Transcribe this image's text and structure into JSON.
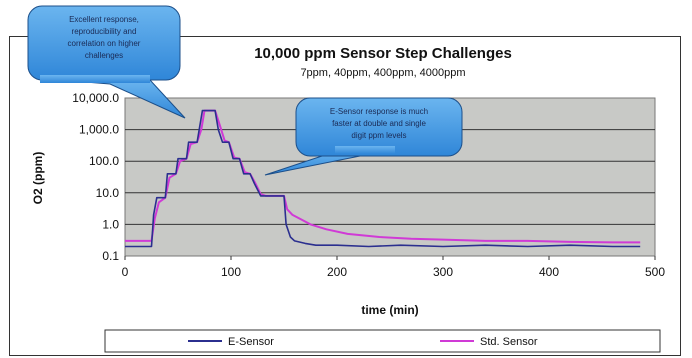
{
  "chart_data": {
    "type": "line",
    "title": "10,000 ppm Sensor Step Challenges",
    "subtitle": "7ppm, 40ppm, 400ppm, 4000ppm",
    "xlabel": "time (min)",
    "ylabel": "O2 (ppm)",
    "xlim": [
      0,
      500
    ],
    "ylim": [
      0.1,
      10000
    ],
    "yscale": "log",
    "grid": "horizontal",
    "legend_position": "bottom",
    "x_ticks": [
      "0",
      "100",
      "200",
      "300",
      "400",
      "500"
    ],
    "y_ticks": [
      "0.1",
      "1.0",
      "10.0",
      "100.0",
      "1,000.0",
      "10,000.0"
    ],
    "series": [
      {
        "name": "E-Sensor",
        "color": "#2b2f8f",
        "x": [
          0,
          25,
          27,
          30,
          38,
          40,
          48,
          50,
          58,
          60,
          68,
          70,
          73,
          80,
          85,
          88,
          92,
          98,
          102,
          108,
          112,
          118,
          122,
          128,
          132,
          150,
          152,
          156,
          160,
          170,
          180,
          200,
          230,
          260,
          300,
          340,
          380,
          420,
          460,
          486
        ],
        "values": [
          0.2,
          0.2,
          2.0,
          7.0,
          7.0,
          40,
          40,
          120,
          120,
          400,
          400,
          1000,
          4000,
          4000,
          4000,
          1000,
          400,
          400,
          120,
          120,
          40,
          40,
          20,
          8,
          8,
          8,
          1.0,
          0.4,
          0.3,
          0.25,
          0.22,
          0.22,
          0.2,
          0.22,
          0.2,
          0.22,
          0.2,
          0.22,
          0.2,
          0.2
        ]
      },
      {
        "name": "Std. Sensor",
        "color": "#d03ad6",
        "x": [
          0,
          25,
          28,
          32,
          38,
          42,
          48,
          52,
          58,
          62,
          68,
          72,
          75,
          80,
          85,
          90,
          94,
          98,
          103,
          108,
          113,
          118,
          123,
          128,
          133,
          150,
          153,
          158,
          165,
          175,
          190,
          210,
          240,
          270,
          300,
          340,
          380,
          420,
          460,
          486
        ],
        "values": [
          0.3,
          0.3,
          1.5,
          5.0,
          7.0,
          30,
          40,
          100,
          120,
          350,
          400,
          1000,
          4000,
          4000,
          4000,
          1200,
          450,
          400,
          130,
          120,
          45,
          40,
          20,
          9,
          8,
          8,
          3.0,
          2.0,
          1.5,
          1.0,
          0.7,
          0.5,
          0.4,
          0.35,
          0.33,
          0.3,
          0.3,
          0.28,
          0.27,
          0.27
        ]
      }
    ],
    "annotations": [
      {
        "text": "Excellent response, reproducibility and correlation on higher challenges"
      },
      {
        "text": "E-Sensor response is much faster at double and single digit ppm levels"
      }
    ]
  }
}
